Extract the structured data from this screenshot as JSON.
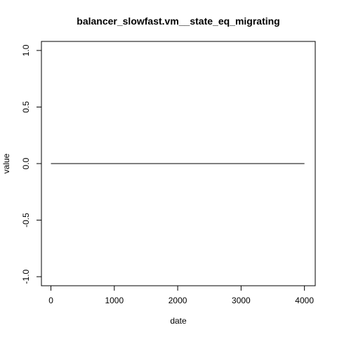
{
  "chart_data": {
    "type": "line",
    "title": "balancer_slowfast.vm__state_eq_migrating",
    "xlabel": "date",
    "ylabel": "value",
    "xlim": [
      -150,
      4170
    ],
    "ylim": [
      -1.08,
      1.08
    ],
    "x_ticks": [
      0,
      1000,
      2000,
      3000,
      4000
    ],
    "x_tick_labels": [
      "0",
      "1000",
      "2000",
      "3000",
      "4000"
    ],
    "y_ticks": [
      -1.0,
      -0.5,
      0.0,
      0.5,
      1.0
    ],
    "y_tick_labels": [
      "-1.0",
      "-0.5",
      "0.0",
      "0.5",
      "1.0"
    ],
    "grid": false,
    "series": [
      {
        "x": [
          0,
          4000
        ],
        "y": [
          0,
          0
        ],
        "color": "#000000"
      }
    ]
  }
}
